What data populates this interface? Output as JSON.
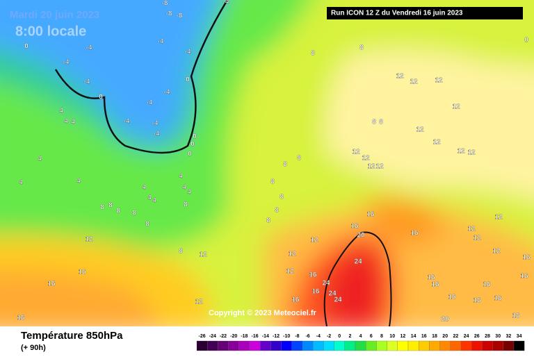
{
  "header": {
    "date": "Mardi 20 juin 2023",
    "time": "8:00 locale",
    "run": "Run ICON 12 Z du Vendredi 16 juin 2023"
  },
  "copyright": "Copyright © 2023 Meteociel.fr",
  "legend": {
    "title": "Température 850hPa",
    "subtitle": "(+ 90h)",
    "ticks": [
      -26,
      -24,
      -22,
      -20,
      -18,
      -16,
      -14,
      -12,
      -10,
      -8,
      -6,
      -4,
      -2,
      0,
      2,
      4,
      6,
      8,
      10,
      12,
      14,
      16,
      18,
      20,
      22,
      24,
      26,
      28,
      30,
      32,
      34
    ],
    "colors": [
      "#2a0033",
      "#440055",
      "#660077",
      "#880099",
      "#aa00bb",
      "#cc00dd",
      "#6600cc",
      "#3300cc",
      "#0000ff",
      "#0044ff",
      "#0088ff",
      "#00bbff",
      "#00ddff",
      "#00ffcc",
      "#00ee88",
      "#22dd44",
      "#66ee22",
      "#aaff22",
      "#ddff22",
      "#ffff00",
      "#ffee00",
      "#ffcc00",
      "#ffaa00",
      "#ff8800",
      "#ff6600",
      "#ff3300",
      "#ee1100",
      "#cc0000",
      "#aa0000",
      "#770000",
      "#000000"
    ]
  },
  "contour_labels": [
    -8,
    -8,
    -8,
    -4,
    0,
    -4,
    -4,
    -4,
    -4,
    -4,
    0,
    -4,
    0,
    -4,
    -4,
    -4,
    -4,
    0,
    0,
    0,
    8,
    8,
    0,
    12,
    12,
    12,
    12,
    12,
    12,
    12,
    12,
    8,
    8,
    12,
    12,
    12,
    12,
    4,
    4,
    4,
    4,
    4,
    4,
    4,
    4,
    4,
    4,
    4,
    4,
    8,
    8,
    8,
    8,
    8,
    8,
    8,
    8,
    8,
    8,
    8,
    8,
    8,
    12,
    12,
    12,
    12,
    12,
    12,
    12,
    12,
    12,
    12,
    16,
    16,
    16,
    16,
    16,
    16,
    16,
    16,
    16,
    16,
    16,
    16,
    16,
    16,
    16,
    16,
    16,
    16,
    20,
    20,
    24,
    24,
    24,
    24
  ]
}
